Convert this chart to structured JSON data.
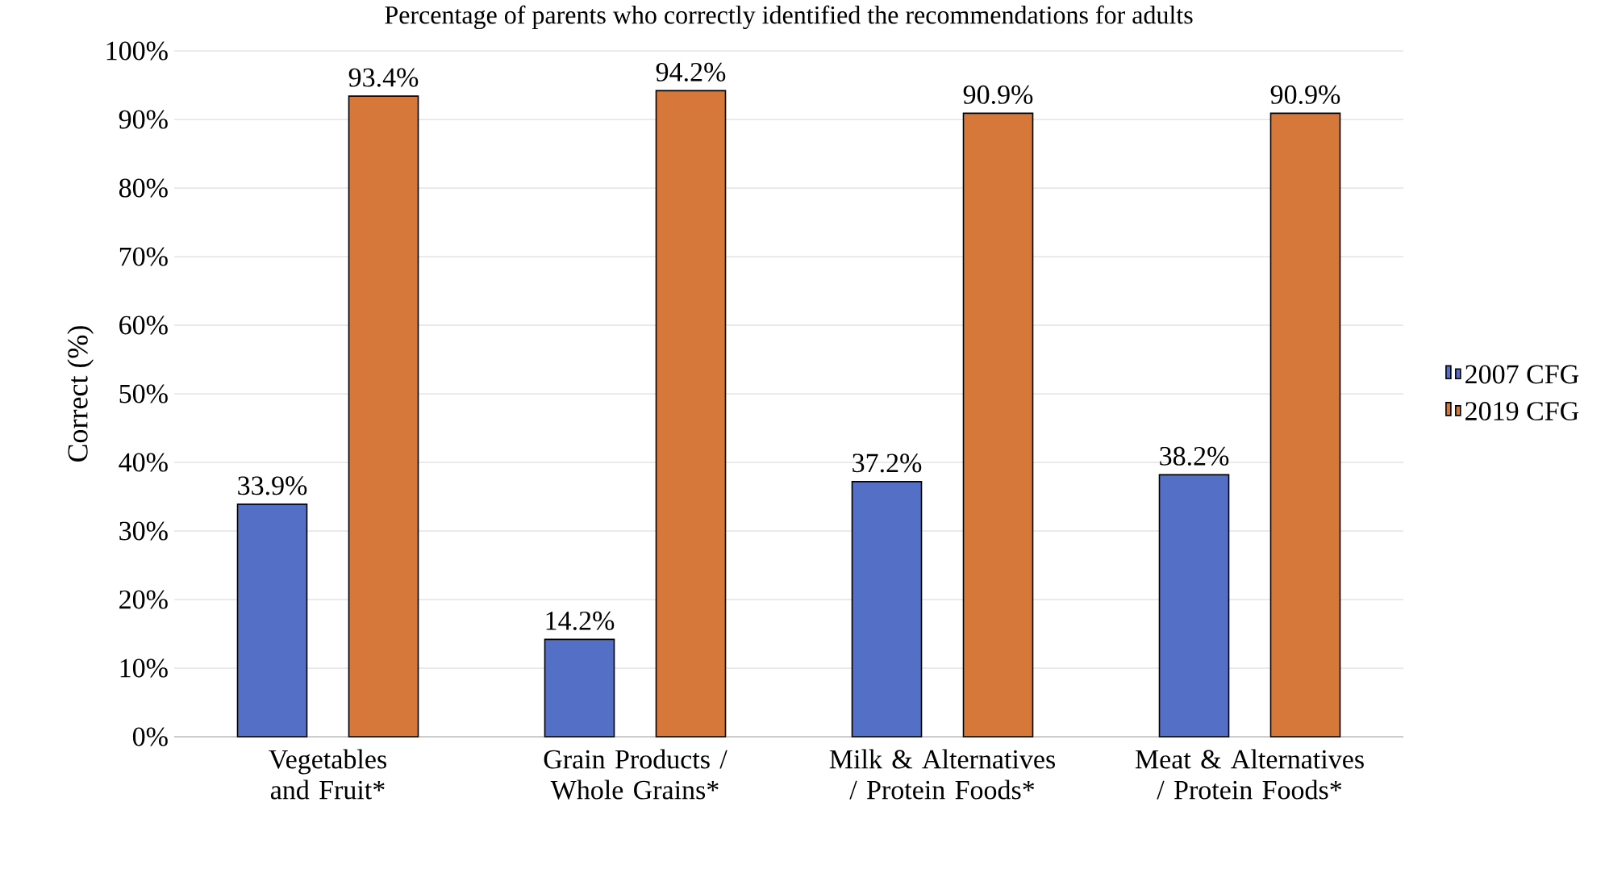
{
  "chart_data": {
    "type": "bar",
    "title": "Percentage of parents who correctly identified the recommendations for adults",
    "ylabel": "Correct (%)",
    "categories": [
      "Vegetables and Fruit*",
      "Grain Products / Whole Grains*",
      "Milk & Alternatives / Protein Foods*",
      "Meat & Alternatives / Protein Foods*"
    ],
    "series": [
      {
        "name": "2007 CFG",
        "color": "#5470c6",
        "values": [
          33.9,
          14.2,
          37.2,
          38.2
        ],
        "value_labels": [
          "33.9%",
          "14.2%",
          "37.2%",
          "38.2%"
        ]
      },
      {
        "name": "2019 CFG",
        "color": "#d6783a",
        "values": [
          93.4,
          94.2,
          90.9,
          90.9
        ],
        "value_labels": [
          "93.4%",
          "94.2%",
          "90.9%",
          "90.9%"
        ]
      }
    ],
    "ylim": [
      0,
      100
    ],
    "yticks": [
      {
        "value": 0,
        "label": "0%"
      },
      {
        "value": 10,
        "label": "10%"
      },
      {
        "value": 20,
        "label": "20%"
      },
      {
        "value": 30,
        "label": "30%"
      },
      {
        "value": 40,
        "label": "40%"
      },
      {
        "value": 50,
        "label": "50%"
      },
      {
        "value": 60,
        "label": "60%"
      },
      {
        "value": 70,
        "label": "70%"
      },
      {
        "value": 80,
        "label": "80%"
      },
      {
        "value": 90,
        "label": "90%"
      },
      {
        "value": 100,
        "label": "100%"
      }
    ],
    "grid": "y",
    "legend": "right"
  }
}
